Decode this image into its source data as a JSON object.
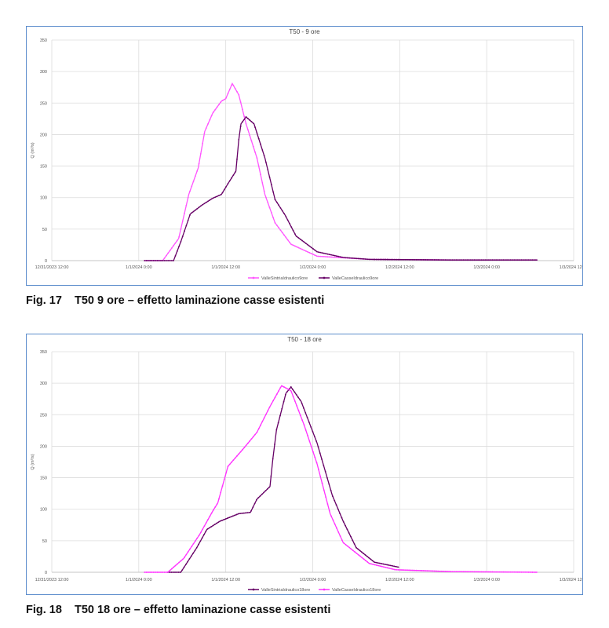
{
  "captions": [
    {
      "number": "Fig. 17",
      "text": "T50 9 ore – effetto laminazione casse esistenti"
    },
    {
      "number": "Fig. 18",
      "text": "T50 18 ore – effetto laminazione casse esistenti"
    }
  ],
  "chart_data": [
    {
      "type": "line",
      "title": "T50 - 9 ore",
      "xlabel": "",
      "ylabel": "Q (m³/s)",
      "x_unit": "hours since 12/31/2023 12:00",
      "xlim": [
        0,
        72
      ],
      "ylim": [
        0,
        350
      ],
      "yticks": [
        0,
        50,
        100,
        150,
        200,
        250,
        300,
        350
      ],
      "xticks": [
        {
          "h": 0,
          "label": "12/31/2023 12:00"
        },
        {
          "h": 12,
          "label": "1/1/2024 0:00"
        },
        {
          "h": 24,
          "label": "1/1/2024 12:00"
        },
        {
          "h": 36,
          "label": "1/2/2024 0:00"
        },
        {
          "h": 48,
          "label": "1/2/2024 12:00"
        },
        {
          "h": 60,
          "label": "1/3/2024 0:00"
        },
        {
          "h": 72,
          "label": "1/3/2024 12:00"
        }
      ],
      "grid": true,
      "legend_position": "bottom",
      "series": [
        {
          "name": "ValleSintriaIdraulico9ore",
          "color": "#ff55ff",
          "x": [
            12.8,
            15.3,
            17.5,
            18.9,
            20.2,
            21.1,
            22.2,
            23.4,
            24,
            24.9,
            25.8,
            26.8,
            28.3,
            29.4,
            30.8,
            33,
            36.6,
            43.8,
            55,
            67
          ],
          "y": [
            0,
            0,
            35,
            105,
            147,
            205,
            234,
            253,
            257,
            281,
            263,
            217,
            163,
            105,
            60,
            26,
            7,
            2,
            1,
            1
          ]
        },
        {
          "name": "ValleCasseIdraulico9ore",
          "color": "#660066",
          "x": [
            12.8,
            16.8,
            17.8,
            19.1,
            20.7,
            22.2,
            23.4,
            24.3,
            25.4,
            25.8,
            26.1,
            26.8,
            27.9,
            29.4,
            30.8,
            32.2,
            33.7,
            36.6,
            40.2,
            43.8,
            55,
            67
          ],
          "y": [
            0,
            0,
            30,
            74,
            88,
            99,
            105,
            122,
            142,
            192,
            217,
            228,
            217,
            163,
            97,
            72,
            39,
            14,
            5,
            2,
            1,
            1
          ]
        }
      ]
    },
    {
      "type": "line",
      "title": "T50 - 18 ore",
      "xlabel": "",
      "ylabel": "Q (m³/s)",
      "x_unit": "hours since 12/31/2023 12:00",
      "xlim": [
        0,
        72
      ],
      "ylim": [
        0,
        350
      ],
      "yticks": [
        0,
        50,
        100,
        150,
        200,
        250,
        300,
        350
      ],
      "xticks": [
        {
          "h": 0,
          "label": "12/31/2023 12:00"
        },
        {
          "h": 12,
          "label": "1/1/2024 0:00"
        },
        {
          "h": 24,
          "label": "1/1/2024 12:00"
        },
        {
          "h": 36,
          "label": "1/2/2024 0:00"
        },
        {
          "h": 48,
          "label": "1/2/2024 12:00"
        },
        {
          "h": 60,
          "label": "1/3/2024 0:00"
        },
        {
          "h": 72,
          "label": "1/3/2024 12:00"
        }
      ],
      "grid": true,
      "legend_position": "bottom",
      "series": [
        {
          "name": "ValleSintriaIdraulico18ore",
          "color": "#660066",
          "x": [
            16,
            17.8,
            20,
            21.4,
            23.2,
            25.8,
            27.4,
            28.3,
            30.1,
            30.5,
            31,
            32.3,
            33,
            34.4,
            36.6,
            38.7,
            40.2,
            42,
            44.5,
            47.9
          ],
          "y": [
            0,
            0,
            39,
            68,
            81,
            93,
            95,
            116,
            136,
            180,
            226,
            284,
            294,
            271,
            205,
            122,
            81,
            39,
            16,
            8
          ]
        },
        {
          "name": "ValleCasseIdraulico18ore",
          "color": "#ff33ff",
          "x": [
            12.8,
            16,
            18.2,
            20.4,
            22.2,
            22.9,
            24.3,
            26.5,
            28.3,
            30.1,
            31.7,
            33,
            34.8,
            36.6,
            38.4,
            40.2,
            43.8,
            47.4,
            55,
            67
          ],
          "y": [
            0,
            0,
            22,
            60,
            97,
            110,
            168,
            197,
            222,
            263,
            296,
            288,
            234,
            172,
            93,
            47,
            14,
            4,
            1,
            0
          ]
        }
      ]
    }
  ]
}
